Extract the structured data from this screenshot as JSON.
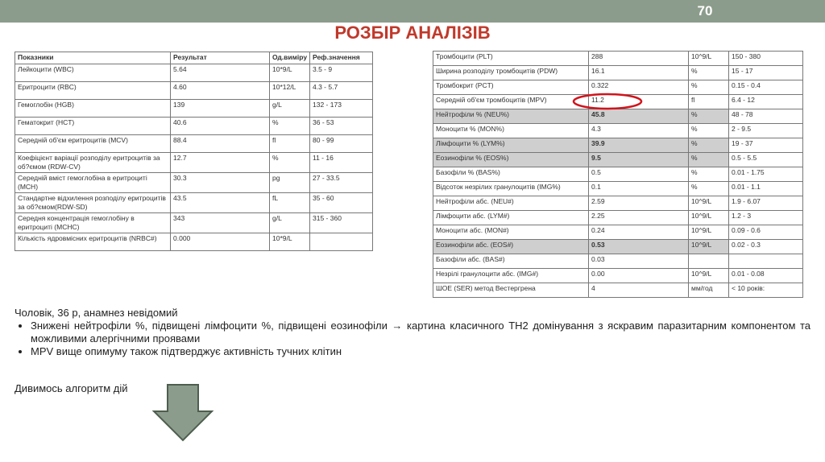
{
  "page_number": "70",
  "title": "РОЗБІР АНАЛІЗІВ",
  "table_left": {
    "header": [
      "Показники",
      "Результат",
      "Од.виміру",
      "Реф.значення"
    ],
    "rows": [
      [
        "Лейкоцити (WBC)",
        "5.64",
        "10*9/L",
        "3.5 - 9"
      ],
      [
        "Еритроцити (RBC)",
        "4.60",
        "10*12/L",
        "4.3 - 5.7"
      ],
      [
        "Гемоглобін (HGB)",
        "139",
        "g/L",
        "132 - 173"
      ],
      [
        "Гематокрит (HCT)",
        "40.6",
        "%",
        "36 - 53"
      ],
      [
        "Середній об'єм еритроцитів (MCV)",
        "88.4",
        "fl",
        "80 - 99"
      ],
      [
        "Коефіцієнт варіації розподілу еритроцитів за об?ємом (RDW-CV)",
        "12.7",
        "%",
        "11 - 16"
      ],
      [
        "Середній вміст гемоглобіна в еритроциті (MCH)",
        "30.3",
        "pg",
        "27 - 33.5"
      ],
      [
        "Стандартне відхилення розподілу еритроцитів за об?ємом(RDW-SD)",
        "43.5",
        "fL",
        "35 - 60"
      ],
      [
        "Середня концентрація гемоглобіну в еритроциті (MCHC)",
        "343",
        "g/L",
        "315 - 360"
      ],
      [
        "Кількість ядровмісних еритроцитів (NRBC#)",
        "0.000",
        "10*9/L"
      ]
    ]
  },
  "table_right": {
    "rows": [
      [
        "Тромбоцити (PLT)",
        "288",
        "10^9/L",
        "150 - 380"
      ],
      [
        "Ширина розподілу тромбоцитів (PDW)",
        "16.1",
        "%",
        "15 - 17"
      ],
      [
        "Тромбокрит (PCT)",
        "0.322",
        "%",
        "0.15 - 0.4"
      ],
      [
        "Середній об'єм тромбоцитів (MPV)",
        "11.2",
        "fl",
        "6.4 - 12"
      ],
      [
        "Нейтрофіли % (NEU%)",
        "45.8",
        "%",
        "48 - 78"
      ],
      [
        "Моноцити % (MON%)",
        "4.3",
        "%",
        "2 - 9.5"
      ],
      [
        "Лімфоцити % (LYM%)",
        "39.9",
        "%",
        "19 - 37"
      ],
      [
        "Еозинофіли % (EOS%)",
        "9.5",
        "%",
        "0.5 - 5.5"
      ],
      [
        "Базофіли % (BAS%)",
        "0.5",
        "%",
        "0.01 - 1.75"
      ],
      [
        "Відсоток незрілих гранулоцитів (IMG%)",
        "0.1",
        "%",
        "0.01 - 1.1"
      ],
      [
        "Нейтрофіли абс. (NEU#)",
        "2.59",
        "10^9/L",
        "1.9 - 6.07"
      ],
      [
        "Лімфоцити абс. (LYM#)",
        "2.25",
        "10^9/L",
        "1.2 - 3"
      ],
      [
        "Моноцити абс. (MON#)",
        "0.24",
        "10^9/L",
        "0.09 - 0.6"
      ],
      [
        "Еозинофіли абс. (EOS#)",
        "0.53",
        "10^9/L",
        "0.02 - 0.3"
      ],
      [
        "Базофіли абс. (BAS#)",
        "0.03"
      ],
      [
        "Незрілі гранулоцити абс. (IMG#)",
        "0.00",
        "10^9/L",
        "0.01 - 0.08"
      ],
      [
        "ШОЕ (SER) метод Вестергрена",
        "4",
        "мм/год",
        "< 10 років:"
      ]
    ]
  },
  "notes": {
    "intro": "Чоловік, 36 р, анамнез невідомий",
    "bullets": [
      "Знижені нейтрофіли %, підвищені лімфоцити %, підвищені еозинофіли → картина класичного ТН2 домінування з яскравим паразитарним компонентом та можливими алергічними проявами",
      "MPV вище опимуму також підтверджує активність тучних клітин"
    ],
    "footer": "Дивимось алгоритм дій"
  }
}
